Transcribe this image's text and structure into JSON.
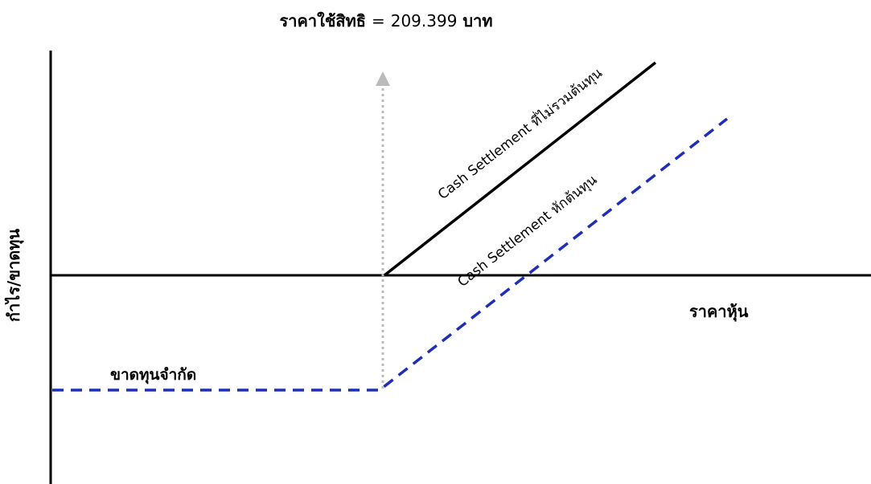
{
  "title": {
    "prefix": "ราคาใช้สิทธิ",
    "equals": "=",
    "value": "209.399",
    "unit": "บาท"
  },
  "y_axis_label": "กำไร/ขาดทุน",
  "x_axis_label": "ราคาหุ้น",
  "lines": {
    "gross": {
      "label": "Cash Settlement ที่ไม่รวมต้นทุน",
      "color": "#000000",
      "style": "solid"
    },
    "net": {
      "label": "Cash Settlement หักต้นทุน",
      "color": "#1f2fb5",
      "style": "dashed"
    }
  },
  "limited_loss_label": "ขาดทุนจำกัด",
  "strike_marker": {
    "color": "#bbbbbb",
    "style": "dotted-arrow"
  }
}
